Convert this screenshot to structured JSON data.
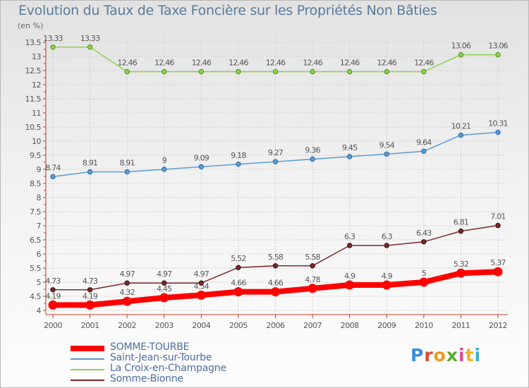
{
  "title": "Evolution du Taux de Taxe Foncière sur les Propriétés Non Bâties",
  "unit_label": "(en %)",
  "brand": {
    "letters": [
      "P",
      "r",
      "o",
      "x",
      "i",
      "t",
      "i"
    ],
    "colors": [
      "#3a8ee0",
      "#d94a2a",
      "#ef9a1c",
      "#5aab2a",
      "#e04a9a",
      "#f0b020",
      "#3ab0d0"
    ]
  },
  "chart_data": {
    "type": "line",
    "title": "Evolution du Taux de Taxe Foncière sur les Propriétés Non Bâties",
    "ylabel": "(en %)",
    "xlabel": "",
    "ylim": [
      4,
      13.5
    ],
    "yticks": [
      "4",
      "4.5",
      "5",
      "5.5",
      "6",
      "6.5",
      "7",
      "7.5",
      "8",
      "8.5",
      "9",
      "9.5",
      "10",
      "10.5",
      "11",
      "11.5",
      "12",
      "12.5",
      "13",
      "13.5"
    ],
    "x": [
      "2000",
      "2001",
      "2002",
      "2003",
      "2004",
      "2005",
      "2006",
      "2007",
      "2008",
      "2009",
      "2010",
      "2011",
      "2012"
    ],
    "grid": true,
    "series": [
      {
        "name": "SOMME-TOURBE",
        "color": "#ff0000",
        "values": [
          4.19,
          4.19,
          4.32,
          4.45,
          4.54,
          4.66,
          4.66,
          4.78,
          4.9,
          4.9,
          5,
          5.32,
          5.37
        ],
        "labels": [
          "4.19",
          "4.19",
          "4.32",
          "4.45",
          "4.54",
          "4.66",
          "4.66",
          "4.78",
          "4.9",
          "4.9",
          "5",
          "5.32",
          "5.37"
        ]
      },
      {
        "name": "Saint-Jean-sur-Tourbe",
        "color": "#5b9bd5",
        "values": [
          8.74,
          8.91,
          8.91,
          9,
          9.09,
          9.18,
          9.27,
          9.36,
          9.45,
          9.54,
          9.64,
          10.21,
          10.31
        ],
        "labels": [
          "8.74",
          "8.91",
          "8.91",
          "9",
          "9.09",
          "9.18",
          "9.27",
          "9.36",
          "9.45",
          "9.54",
          "9.64",
          "10.21",
          "10.31"
        ]
      },
      {
        "name": "La Croix-en-Champagne",
        "color": "#8fd14f",
        "values": [
          13.33,
          13.33,
          12.46,
          12.46,
          12.46,
          12.46,
          12.46,
          12.46,
          12.46,
          12.46,
          12.46,
          13.06,
          13.06
        ],
        "labels": [
          "13.33",
          "13.33",
          "12.46",
          "12.46",
          "12.46",
          "12.46",
          "12.46",
          "12.46",
          "12.46",
          "12.46",
          "12.46",
          "13.06",
          "13.06"
        ]
      },
      {
        "name": "Somme-Bionne",
        "color": "#7a2a2a",
        "values": [
          4.73,
          4.73,
          4.97,
          4.97,
          4.97,
          5.52,
          5.58,
          5.58,
          6.3,
          6.3,
          6.43,
          6.81,
          7.01
        ],
        "labels": [
          "4.73",
          "4.73",
          "4.97",
          "4.97",
          "4.97",
          "5.52",
          "5.58",
          "5.58",
          "6.3",
          "6.3",
          "6.43",
          "6.81",
          "7.01"
        ]
      }
    ]
  }
}
